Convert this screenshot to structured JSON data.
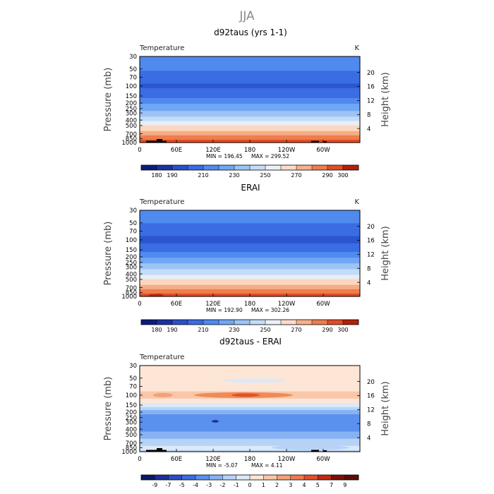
{
  "figure": {
    "title": "JJA"
  },
  "chart_data": [
    {
      "type": "heatmap",
      "title": "d92taus (yrs 1-1)",
      "subtitle_left": "Temperature",
      "units": "K",
      "ylabel_left": "Pressure (mb)",
      "ylabel_right": "Height (km)",
      "x_ticks": [
        "0",
        "60E",
        "120E",
        "180",
        "120W",
        "60W"
      ],
      "y_ticks_left": [
        "30",
        "50",
        "70",
        "100",
        "150",
        "200",
        "250",
        "300",
        "400",
        "500",
        "700",
        "850",
        "1000"
      ],
      "y_ticks_right": [
        "20",
        "16",
        "12",
        "8",
        "4"
      ],
      "stats": {
        "min_label": "MIN = 196.45",
        "max_label": "MAX = 299.52"
      },
      "levels": [
        180,
        190,
        200,
        210,
        220,
        230,
        240,
        250,
        260,
        270,
        280,
        290,
        300
      ],
      "colorbar_labels": [
        "180",
        "190",
        "210",
        "230",
        "250",
        "270",
        "290",
        "300"
      ],
      "profile": [
        {
          "p": 30,
          "v": 216
        },
        {
          "p": 50,
          "v": 212
        },
        {
          "p": 70,
          "v": 205
        },
        {
          "p": 100,
          "v": 198
        },
        {
          "p": 150,
          "v": 206
        },
        {
          "p": 200,
          "v": 218
        },
        {
          "p": 250,
          "v": 226
        },
        {
          "p": 300,
          "v": 234
        },
        {
          "p": 400,
          "v": 248
        },
        {
          "p": 500,
          "v": 259
        },
        {
          "p": 700,
          "v": 276
        },
        {
          "p": 850,
          "v": 288
        },
        {
          "p": 1000,
          "v": 296
        }
      ]
    },
    {
      "type": "heatmap",
      "title": "ERAI",
      "subtitle_left": "Temperature",
      "units": "K",
      "ylabel_left": "Pressure (mb)",
      "ylabel_right": "Height (km)",
      "x_ticks": [
        "0",
        "60E",
        "120E",
        "180",
        "120W",
        "60W"
      ],
      "y_ticks_left": [
        "30",
        "50",
        "70",
        "100",
        "150",
        "200",
        "250",
        "300",
        "400",
        "500",
        "700",
        "850",
        "1000"
      ],
      "y_ticks_right": [
        "20",
        "16",
        "12",
        "8",
        "4"
      ],
      "stats": {
        "min_label": "MIN = 192.90",
        "max_label": "MAX = 302.26"
      },
      "levels": [
        180,
        190,
        200,
        210,
        220,
        230,
        240,
        250,
        260,
        270,
        280,
        290,
        300
      ],
      "colorbar_labels": [
        "180",
        "190",
        "210",
        "230",
        "250",
        "270",
        "290",
        "300"
      ],
      "profile": [
        {
          "p": 30,
          "v": 214
        },
        {
          "p": 50,
          "v": 210
        },
        {
          "p": 70,
          "v": 204
        },
        {
          "p": 100,
          "v": 197
        },
        {
          "p": 150,
          "v": 207
        },
        {
          "p": 200,
          "v": 218
        },
        {
          "p": 250,
          "v": 227
        },
        {
          "p": 300,
          "v": 235
        },
        {
          "p": 400,
          "v": 249
        },
        {
          "p": 500,
          "v": 260
        },
        {
          "p": 700,
          "v": 276
        },
        {
          "p": 850,
          "v": 287
        },
        {
          "p": 1000,
          "v": 295
        }
      ]
    },
    {
      "type": "heatmap",
      "title": "d92taus - ERAI",
      "subtitle_left": "Temperature",
      "units": "",
      "ylabel_left": "Pressure (mb)",
      "ylabel_right": "Height (km)",
      "x_ticks": [
        "0",
        "60E",
        "120E",
        "180",
        "120W",
        "60W"
      ],
      "y_ticks_left": [
        "30",
        "50",
        "70",
        "100",
        "150",
        "200",
        "250",
        "300",
        "400",
        "500",
        "700",
        "850",
        "1000"
      ],
      "y_ticks_right": [
        "20",
        "16",
        "12",
        "8",
        "4"
      ],
      "stats": {
        "min_label": "MIN =   -5.07",
        "max_label": "MAX =     4.11"
      },
      "levels": [
        -9,
        -7,
        -5,
        -4,
        -3,
        -2,
        -1,
        0,
        1,
        2,
        3,
        4,
        5,
        7,
        9
      ],
      "colorbar_labels": [
        "-9",
        "-7",
        "-5",
        "-4",
        "-3",
        "-2",
        "-1",
        "0",
        "1",
        "2",
        "3",
        "4",
        "5",
        "7",
        "9"
      ],
      "profile": [
        {
          "p": 30,
          "v": 0.6
        },
        {
          "p": 50,
          "v": 0.5
        },
        {
          "p": 70,
          "v": 0.4
        },
        {
          "p": 100,
          "v": 1.6
        },
        {
          "p": 130,
          "v": 0.3
        },
        {
          "p": 150,
          "v": -0.5
        },
        {
          "p": 200,
          "v": -2.5
        },
        {
          "p": 250,
          "v": -3.5
        },
        {
          "p": 300,
          "v": -3.8
        },
        {
          "p": 400,
          "v": -3.3
        },
        {
          "p": 500,
          "v": -2.6
        },
        {
          "p": 700,
          "v": -1.5
        },
        {
          "p": 850,
          "v": -0.6
        },
        {
          "p": 1000,
          "v": -1.2
        }
      ]
    }
  ]
}
